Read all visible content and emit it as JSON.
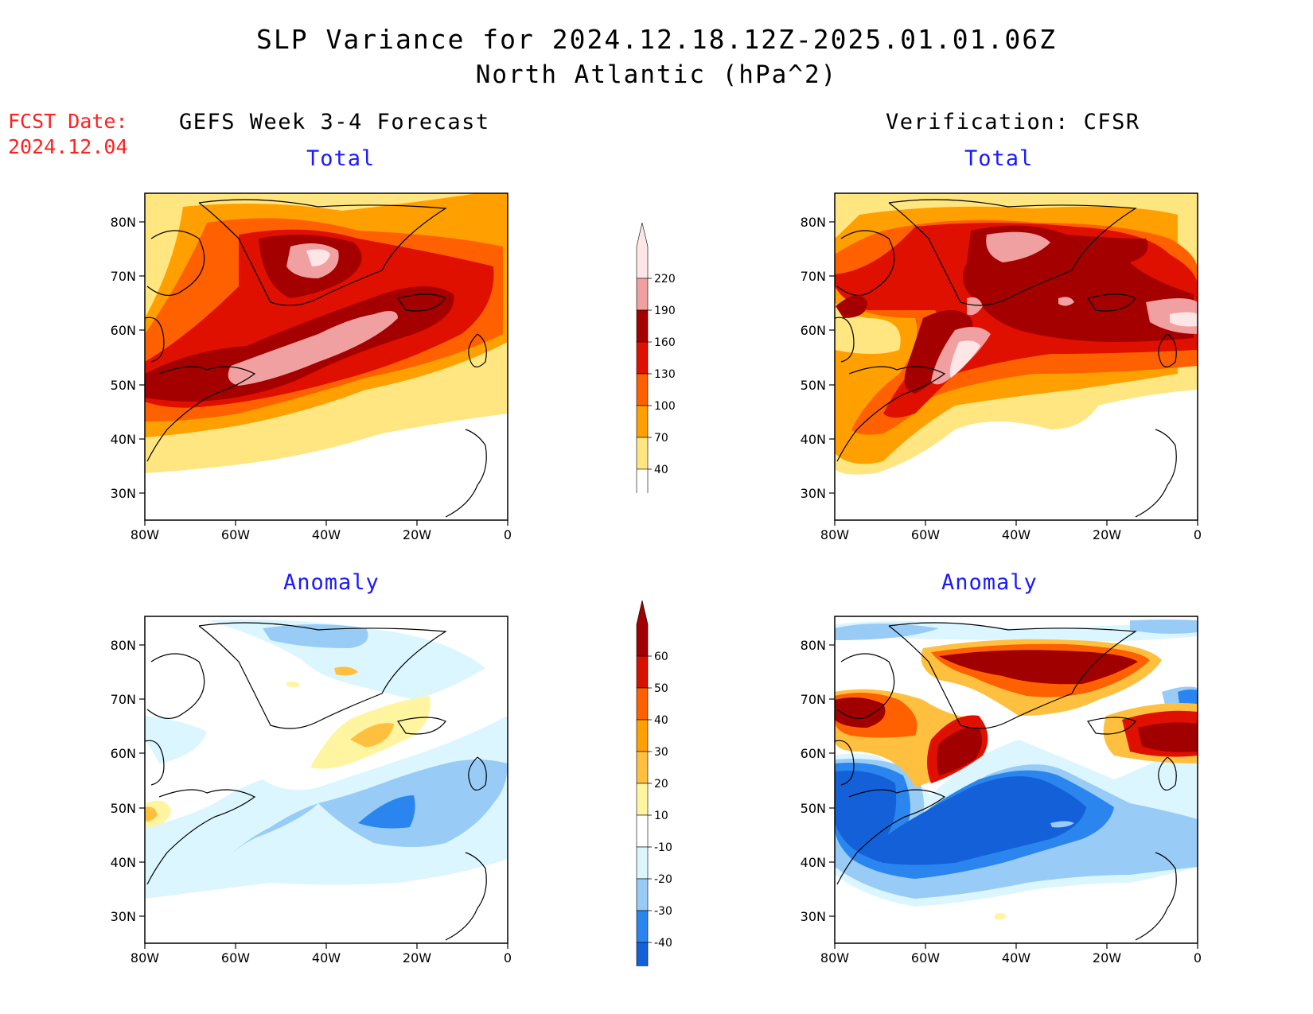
{
  "title_line1": "SLP Variance for 2024.12.18.12Z-2025.01.01.06Z",
  "title_line2": "North Atlantic (hPa^2)",
  "fcst_date_label": "FCST Date:",
  "fcst_date_value": "2024.12.04",
  "left_header": "GEFS Week 3-4 Forecast",
  "right_header": "Verification: CFSR",
  "panel_titles": {
    "top_left": "Total",
    "top_right": "Total",
    "bottom_left": "Anomaly",
    "bottom_right": "Anomaly"
  },
  "lat_labels": [
    "80N",
    "70N",
    "60N",
    "50N",
    "40N",
    "30N"
  ],
  "lon_labels": [
    "80W",
    "60W",
    "40W",
    "20W",
    "0"
  ],
  "total_colorbar": {
    "levels": [
      "40",
      "70",
      "100",
      "130",
      "160",
      "190",
      "220"
    ],
    "colors": [
      "#ffe680",
      "#ffa000",
      "#ff6000",
      "#e01000",
      "#a50000",
      "#f0a0a0",
      "#ffe6e6"
    ]
  },
  "anomaly_colorbar": {
    "levels": [
      "-40",
      "-30",
      "-20",
      "-10",
      "10",
      "20",
      "30",
      "40",
      "50",
      "60"
    ],
    "colors": [
      "#1460d8",
      "#2a86ee",
      "#98ccf6",
      "#dcf6ff",
      "#ffffff",
      "#fff5a0",
      "#ffc040",
      "#ffa000",
      "#ff6000",
      "#d81000",
      "#a00000"
    ]
  }
}
